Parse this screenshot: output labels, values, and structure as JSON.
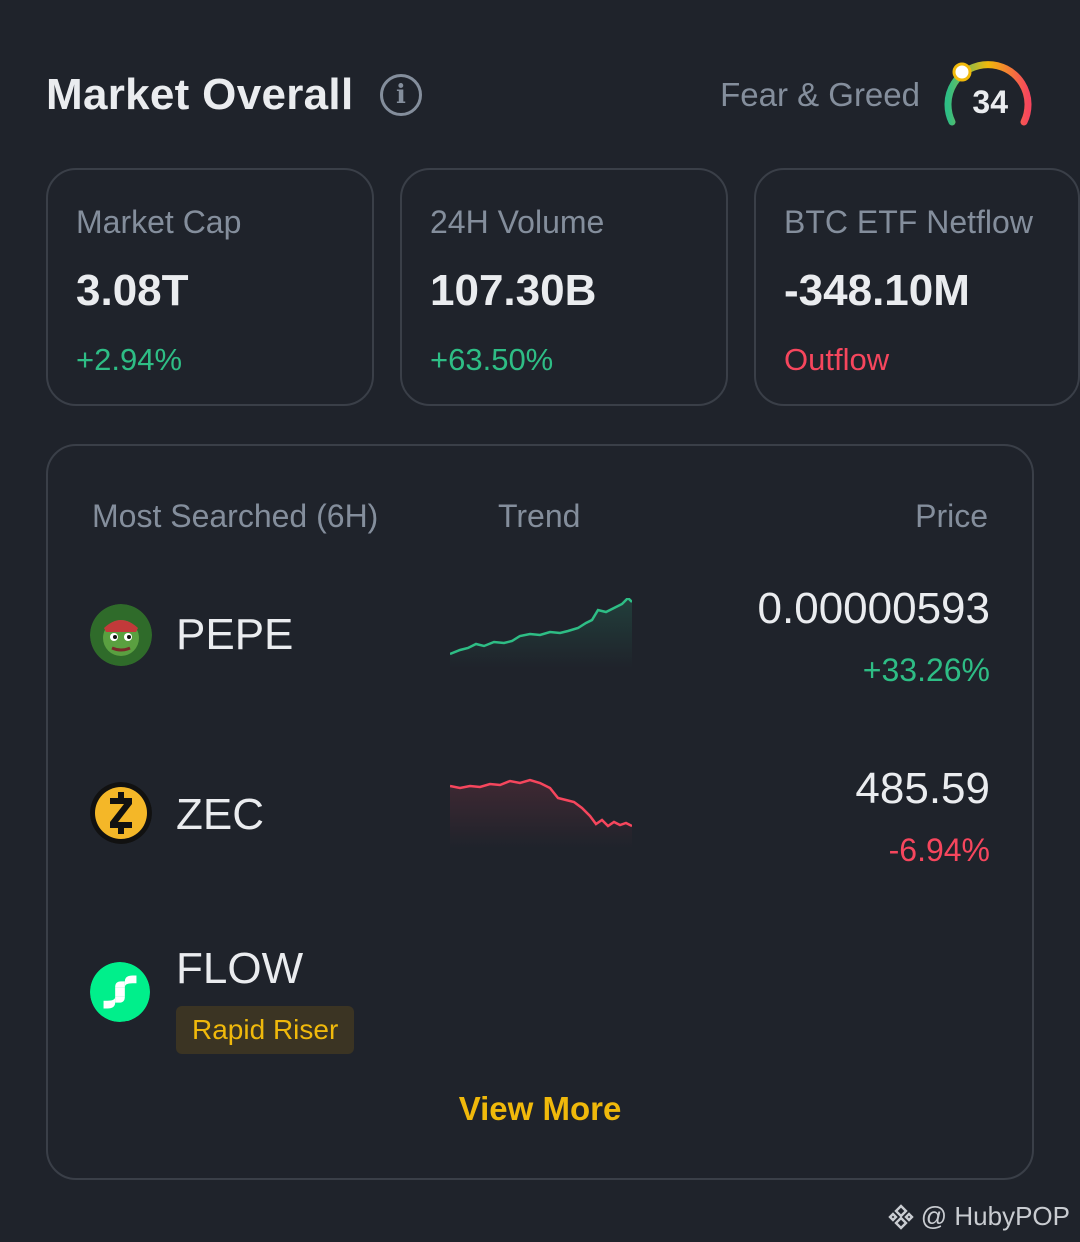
{
  "header": {
    "title": "Market Overall",
    "info_icon": "info-icon",
    "fear_greed_label": "Fear & Greed",
    "fear_greed_value": "34",
    "fear_greed_level": 0.34
  },
  "stats": [
    {
      "label": "Market Cap",
      "value": "3.08T",
      "change": "+2.94%",
      "direction": "up"
    },
    {
      "label": "24H Volume",
      "value": "107.30B",
      "change": "+63.50%",
      "direction": "up"
    },
    {
      "label": "BTC ETF Netflow",
      "value": "-348.10M",
      "change": "Outflow",
      "direction": "down"
    }
  ],
  "most_searched": {
    "col_name": "Most Searched (6H)",
    "col_trend": "Trend",
    "col_price": "Price",
    "rows": [
      {
        "name": "PEPE",
        "icon": "pepe-coin-icon",
        "price": "0.00000593",
        "change": "+33.26%",
        "direction": "up"
      },
      {
        "name": "ZEC",
        "icon": "zcash-coin-icon",
        "price": "485.59",
        "change": "-6.94%",
        "direction": "down"
      },
      {
        "name": "FLOW",
        "icon": "flow-coin-icon",
        "badge": "Rapid Riser"
      }
    ],
    "view_more": "View More"
  },
  "watermark": "@ HubyPOP",
  "colors": {
    "up": "#2ebd85",
    "down": "#f6465d",
    "accent": "#f0b90b",
    "background": "#1f232b"
  }
}
